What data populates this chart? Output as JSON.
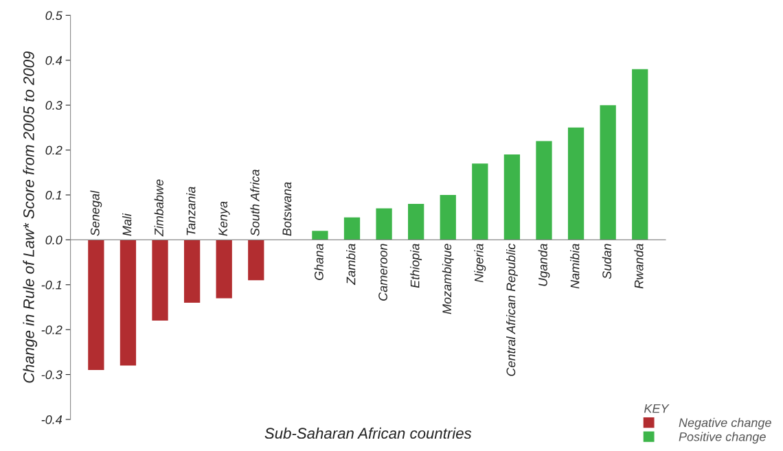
{
  "chart_data": {
    "type": "bar",
    "xlabel": "Sub-Saharan African countries",
    "ylabel": "Change in Rule of Law* Score from 2005 to 2009",
    "legend_title": "KEY",
    "categories": [
      "Senegal",
      "Mali",
      "Zimbabwe",
      "Tanzania",
      "Kenya",
      "South Africa",
      "Botswana",
      "Ghana",
      "Zambia",
      "Cameroon",
      "Ethiopia",
      "Mozambique",
      "Nigeria",
      "Central African Republic",
      "Uganda",
      "Namibia",
      "Sudan",
      "Rwanda"
    ],
    "series": [
      {
        "name": "Negative change",
        "color": "#b22d30",
        "values": [
          -0.29,
          -0.28,
          -0.18,
          -0.14,
          -0.13,
          -0.09,
          0,
          null,
          null,
          null,
          null,
          null,
          null,
          null,
          null,
          null,
          null,
          null
        ]
      },
      {
        "name": "Positive change",
        "color": "#3db54a",
        "values": [
          null,
          null,
          null,
          null,
          null,
          null,
          null,
          0.02,
          0.05,
          0.07,
          0.08,
          0.1,
          0.17,
          0.19,
          0.22,
          0.25,
          0.3,
          0.38
        ]
      }
    ],
    "ylim": [
      -0.4,
      0.5
    ],
    "yticks": [
      0.5,
      0.4,
      0.3,
      0.2,
      0.1,
      {
        "value": 0,
        "label": "0.0"
      },
      -0.1,
      -0.2,
      -0.3,
      -0.4
    ],
    "grid": false,
    "legend": "bottom right"
  }
}
